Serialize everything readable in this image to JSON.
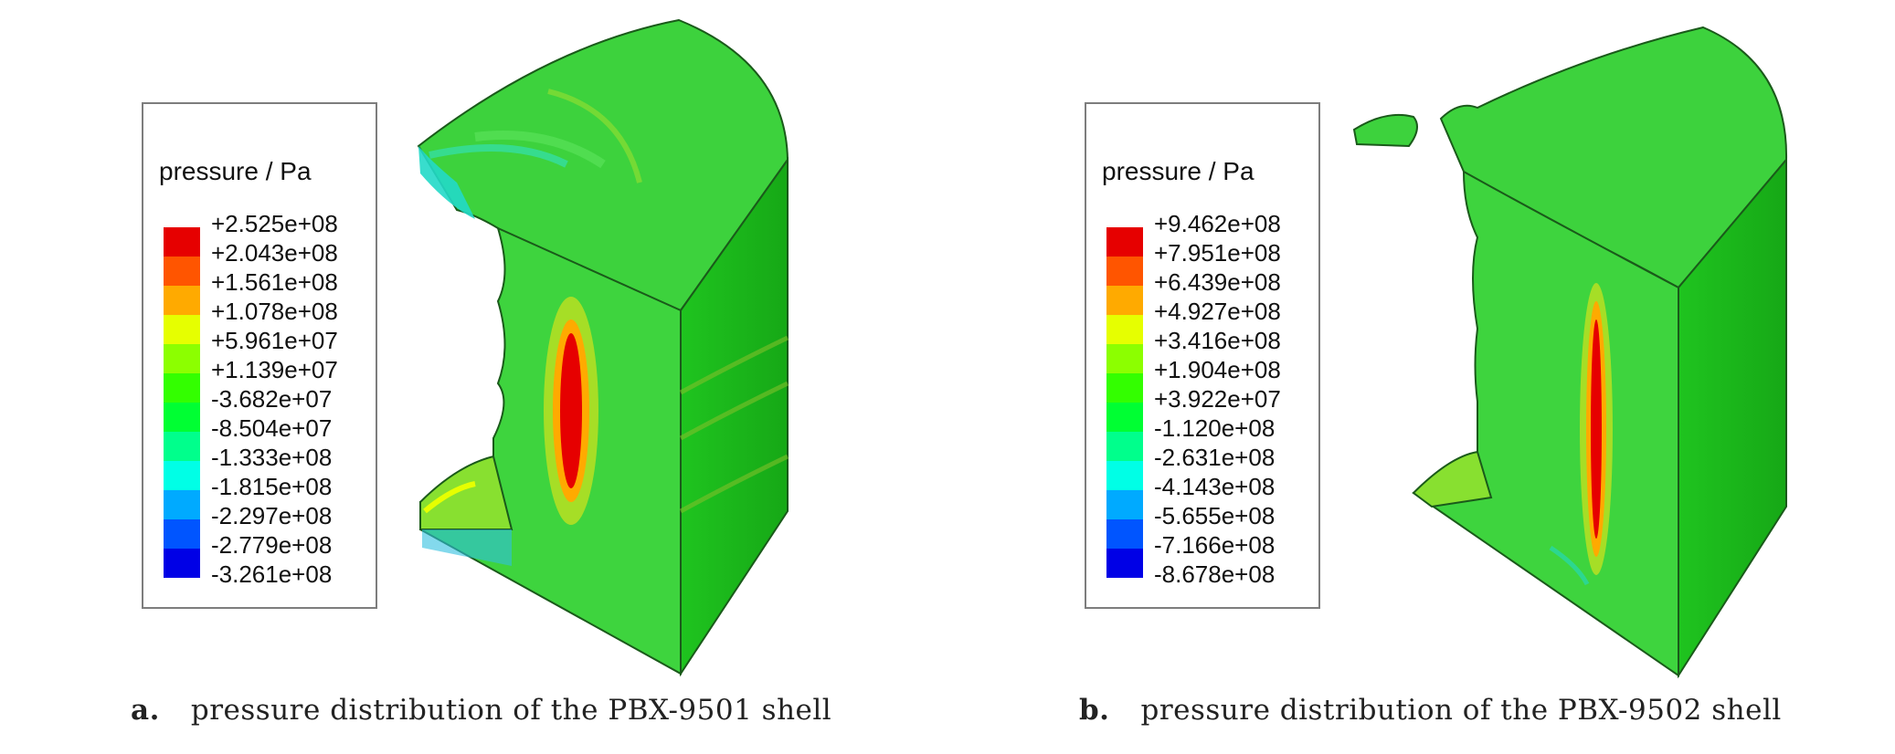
{
  "legend_colors": [
    "#e60000",
    "#ff5500",
    "#ffaa00",
    "#e6ff00",
    "#8cff00",
    "#33ff00",
    "#00ff33",
    "#00ff8c",
    "#00ffe6",
    "#00aaff",
    "#0055ff",
    "#0000e6"
  ],
  "panels": [
    {
      "legend_title": "pressure / Pa",
      "legend_values": [
        "+2.525e+08",
        "+2.043e+08",
        "+1.561e+08",
        "+1.078e+08",
        "+5.961e+07",
        "+1.139e+07",
        "-3.682e+07",
        "-8.504e+07",
        "-1.333e+08",
        "-1.815e+08",
        "-2.297e+08",
        "-2.779e+08",
        "-3.261e+08"
      ],
      "caption_letter": "a.",
      "caption_text": "pressure distribution of the PBX-9501 shell"
    },
    {
      "legend_title": "pressure / Pa",
      "legend_values": [
        "+9.462e+08",
        "+7.951e+08",
        "+6.439e+08",
        "+4.927e+08",
        "+3.416e+08",
        "+1.904e+08",
        "+3.922e+07",
        "-1.120e+08",
        "-2.631e+08",
        "-4.143e+08",
        "-5.655e+08",
        "-7.166e+08",
        "-8.678e+08"
      ],
      "caption_letter": "b.",
      "caption_text": "pressure distribution of the PBX-9502 shell"
    }
  ]
}
